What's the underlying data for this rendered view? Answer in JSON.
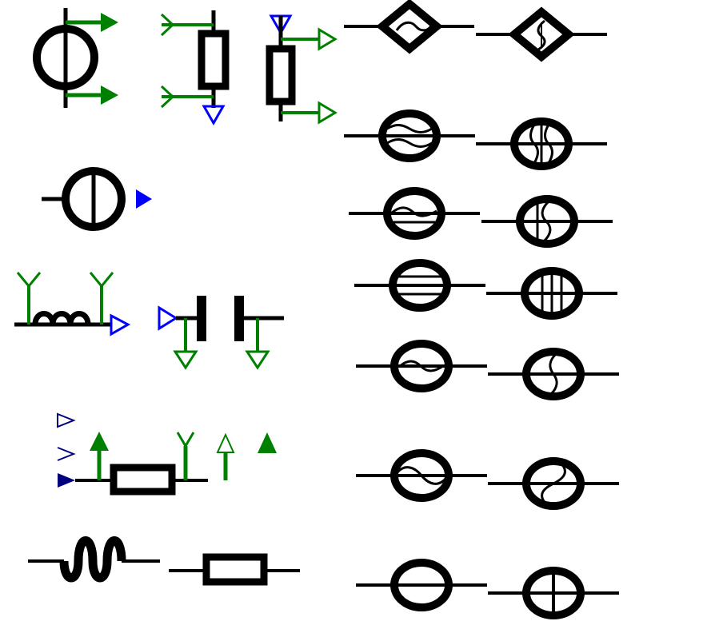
{
  "colors": {
    "stroke": "#000000",
    "green": "#008000",
    "blue": "#0000ff",
    "navy": "#00007f",
    "background": "#ffffff"
  },
  "symbols": [
    {
      "name": "current-source-symbol",
      "icon": "circle-with-vertical-bar"
    },
    {
      "name": "resistor-with-ports-symbol",
      "icon": "vertical-resistor-with-antenna-ports"
    },
    {
      "name": "resistor-with-ports-symbol-2",
      "icon": "vertical-resistor-with-arrow-ports"
    },
    {
      "name": "diamond-wave-horizontal-symbol",
      "icon": "diamond-with-horizontal-wave"
    },
    {
      "name": "diamond-wave-vertical-symbol",
      "icon": "diamond-with-vertical-wave"
    },
    {
      "name": "source-with-output-symbol",
      "icon": "circle-with-bar-and-arrow"
    },
    {
      "name": "inductor-symbol",
      "icon": "coil"
    },
    {
      "name": "capacitor-symbol",
      "icon": "parallel-plates"
    },
    {
      "name": "resistor-box-symbol",
      "icon": "horizontal-resistor-with-ports"
    },
    {
      "name": "port-markers",
      "icon": "triangle-markers"
    },
    {
      "name": "wavy-wire-symbol",
      "icon": "sine-wire"
    },
    {
      "name": "resistor-plain-symbol",
      "icon": "horizontal-resistor"
    },
    {
      "name": "ellipse-double-wave-horizontal",
      "icon": "ellipse-double-wave-h"
    },
    {
      "name": "ellipse-double-wave-vertical",
      "icon": "ellipse-double-wave-v"
    },
    {
      "name": "ellipse-wave-lines-horizontal",
      "icon": "ellipse-wave-lines-h"
    },
    {
      "name": "ellipse-wave-lines-vertical",
      "icon": "ellipse-wave-lines-v"
    },
    {
      "name": "ellipse-three-lines-horizontal",
      "icon": "ellipse-three-lines-h"
    },
    {
      "name": "ellipse-three-lines-vertical",
      "icon": "ellipse-three-lines-v"
    },
    {
      "name": "ellipse-single-wave-horizontal",
      "icon": "ellipse-single-wave-h"
    },
    {
      "name": "ellipse-single-wave-vertical",
      "icon": "ellipse-single-wave-v"
    },
    {
      "name": "ellipse-s-curve-horizontal",
      "icon": "ellipse-s-curve-h"
    },
    {
      "name": "ellipse-s-curve-vertical",
      "icon": "ellipse-s-curve-v"
    },
    {
      "name": "ellipse-plain-horizontal",
      "icon": "ellipse-line-h"
    },
    {
      "name": "ellipse-plain-vertical",
      "icon": "ellipse-line-v"
    }
  ]
}
